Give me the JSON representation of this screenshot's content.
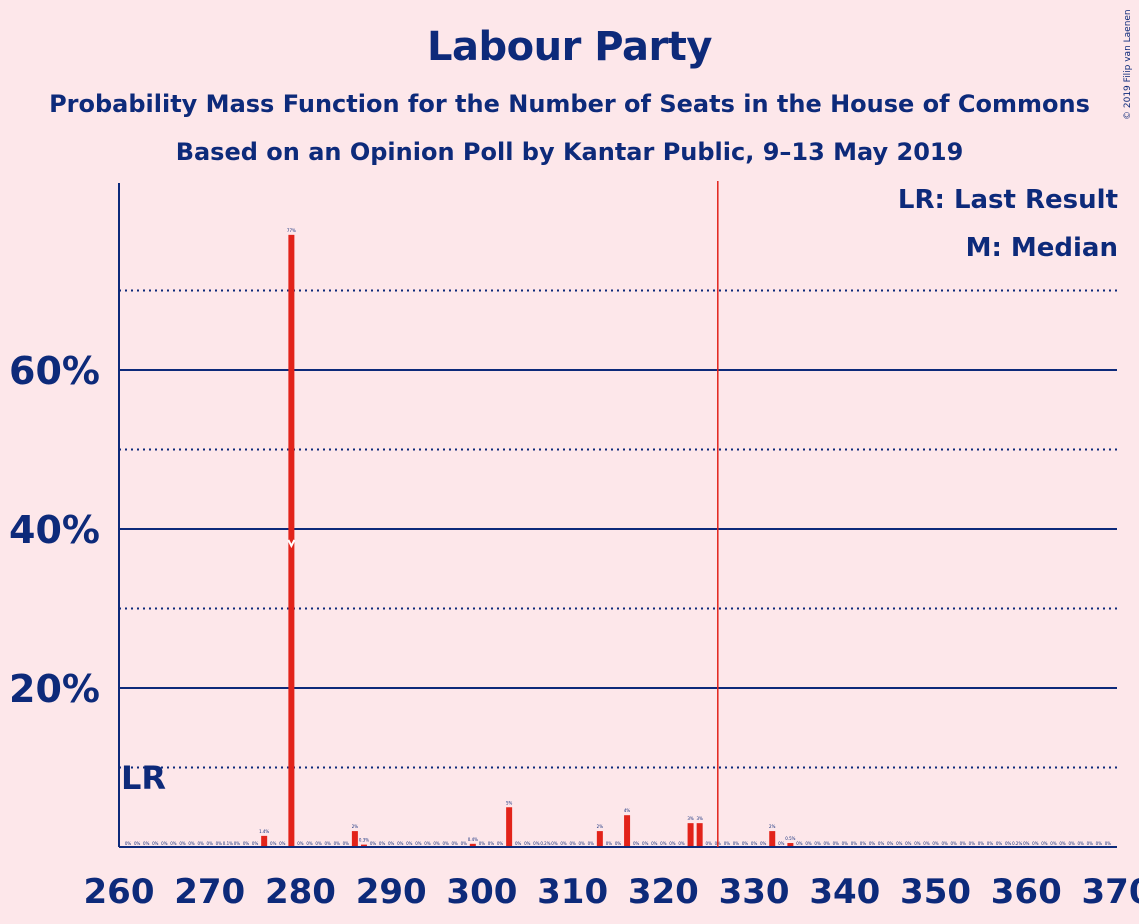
{
  "title": "Labour Party",
  "subtitle_1": "Probability Mass Function for the Number of Seats in the House of Commons",
  "subtitle_2": "Based on an Opinion Poll by Kantar Public, 9–13 May 2019",
  "copyright": "© 2019 Filip van Laenen",
  "legend": {
    "lr": "LR: Last Result",
    "median": "M: Median"
  },
  "colors": {
    "background": "#fde7ea",
    "text": "#0d2a7a",
    "bar": "#e2231a",
    "majority_line": "#e2231a",
    "axis": "#0d2a7a"
  },
  "chart_data": {
    "type": "bar",
    "xlim": [
      260,
      370
    ],
    "ylim": [
      0,
      80
    ],
    "x_ticks": [
      260,
      270,
      280,
      290,
      300,
      310,
      320,
      330,
      340,
      350,
      360,
      370
    ],
    "y_ticks_labeled": [
      {
        "value": 20,
        "label": "20%"
      },
      {
        "value": 40,
        "label": "40%"
      },
      {
        "value": 60,
        "label": "60%"
      }
    ],
    "y_gridlines_dotted": [
      10,
      30,
      50,
      70
    ],
    "majority_line_x": 326,
    "last_result": {
      "x": 262,
      "label": "LR"
    },
    "median": {
      "x": 279,
      "label": "M"
    },
    "bars": [
      {
        "x": 276,
        "value": 1.4,
        "label": "1.4%"
      },
      {
        "x": 279,
        "value": 77,
        "label": "77%"
      },
      {
        "x": 286,
        "value": 2,
        "label": "2%"
      },
      {
        "x": 287,
        "value": 0.3,
        "label": "0.3%"
      },
      {
        "x": 299,
        "value": 0.4,
        "label": "0.4%"
      },
      {
        "x": 303,
        "value": 5,
        "label": "5%"
      },
      {
        "x": 313,
        "value": 2,
        "label": "2%"
      },
      {
        "x": 316,
        "value": 4,
        "label": "4%"
      },
      {
        "x": 323,
        "value": 3,
        "label": "3%"
      },
      {
        "x": 324,
        "value": 3,
        "label": "3%"
      },
      {
        "x": 332,
        "value": 2,
        "label": "2%"
      },
      {
        "x": 334,
        "value": 0.5,
        "label": "0.5%"
      }
    ],
    "small_labels": [
      {
        "x": 272,
        "label": "0.1%"
      },
      {
        "x": 307,
        "label": "0.2%"
      },
      {
        "x": 359,
        "label": "0.2%"
      }
    ]
  }
}
